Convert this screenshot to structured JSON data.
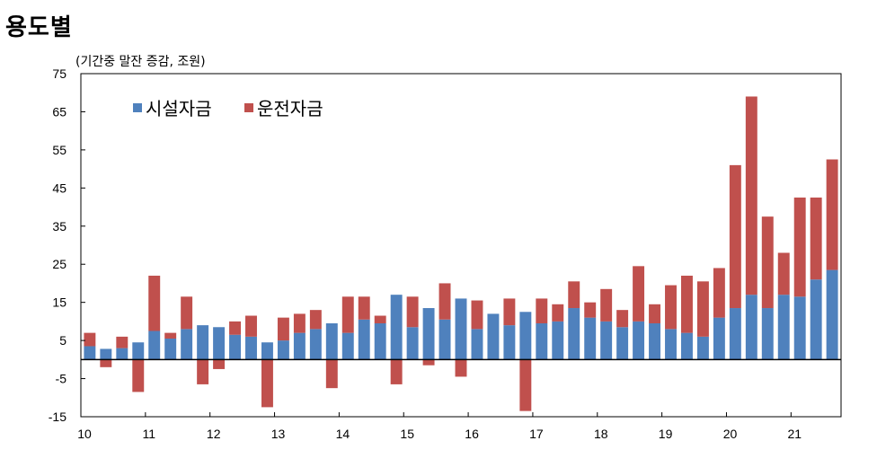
{
  "title": "용도별",
  "unit_label": "(기간중 말잔 증감, 조원)",
  "chart_data": {
    "type": "bar",
    "stacked": true,
    "ylim": [
      -15,
      75
    ],
    "yticks": [
      75,
      65,
      55,
      45,
      35,
      25,
      15,
      5,
      -5,
      -15
    ],
    "xtick_labels": [
      "10",
      "11",
      "12",
      "13",
      "14",
      "15",
      "16",
      "17",
      "18",
      "19",
      "20",
      "21"
    ],
    "xtick_first_bar": [
      0,
      4,
      8,
      12,
      16,
      20,
      24,
      28,
      32,
      36,
      40,
      44
    ],
    "legend_position": "top-left",
    "grid": false,
    "series": [
      {
        "name": "시설자금",
        "color": "#4f81bd",
        "values": [
          3.5,
          2.8,
          3.0,
          4.5,
          7.5,
          5.5,
          8.0,
          9.0,
          8.5,
          6.5,
          6.0,
          4.5,
          5.0,
          7.0,
          8.0,
          9.5,
          7.0,
          10.5,
          9.5,
          17.0,
          8.5,
          13.5,
          10.5,
          16.0,
          8.0,
          12.0,
          9.0,
          12.5,
          9.5,
          10.0,
          13.5,
          11.0,
          10.0,
          8.5,
          10.0,
          9.5,
          8.0,
          7.0,
          6.0,
          11.0,
          13.5,
          17.0,
          13.5,
          17.0,
          16.5,
          21.0,
          23.5
        ]
      },
      {
        "name": "운전자금",
        "color": "#c0504d",
        "values": [
          3.5,
          -2.0,
          3.0,
          -8.5,
          14.5,
          1.5,
          8.5,
          -6.5,
          -2.5,
          3.5,
          5.5,
          -12.5,
          6.0,
          5.0,
          5.0,
          -7.5,
          9.5,
          6.0,
          2.0,
          -6.5,
          8.0,
          -1.5,
          9.5,
          -4.5,
          7.5,
          0.0,
          7.0,
          -13.5,
          6.5,
          4.5,
          7.0,
          4.0,
          8.5,
          4.5,
          14.5,
          5.0,
          11.5,
          15.0,
          14.5,
          13.0,
          37.5,
          52.0,
          24.0,
          11.0,
          26.0,
          21.5,
          29.0
        ]
      }
    ]
  }
}
